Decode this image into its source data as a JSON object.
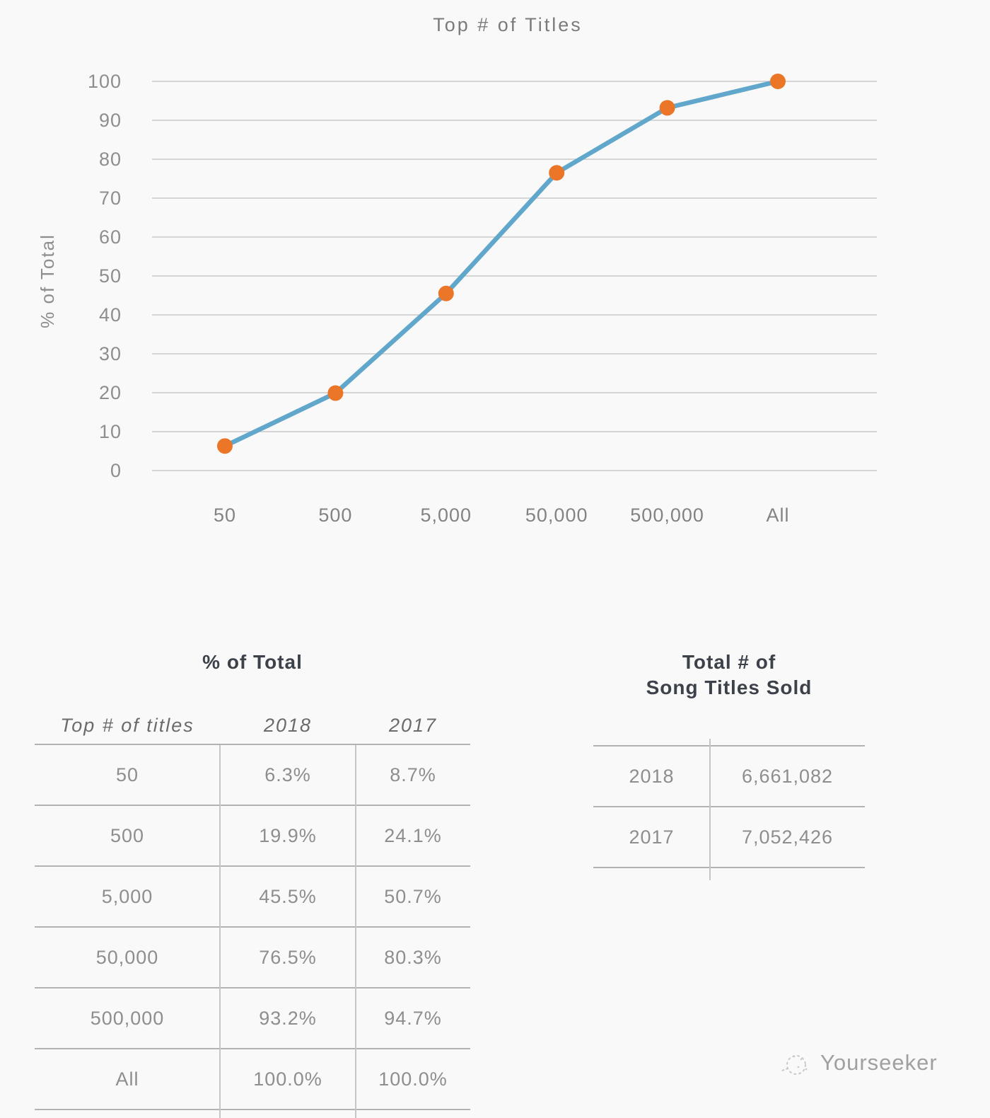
{
  "chart_data": {
    "type": "line",
    "title": "Top # of Titles",
    "ylabel": "% of Total",
    "xlabel": "",
    "categories": [
      "50",
      "500",
      "5,000",
      "50,000",
      "500,000",
      "All"
    ],
    "series": [
      {
        "name": "2018",
        "values": [
          6.3,
          19.9,
          45.5,
          76.5,
          93.2,
          100.0
        ]
      }
    ],
    "ylim": [
      0,
      100
    ],
    "yticks": [
      0,
      10,
      20,
      30,
      40,
      50,
      60,
      70,
      80,
      90,
      100
    ],
    "grid": true,
    "legend": "none",
    "colors": {
      "line": "#61A7CB",
      "marker": "#EC7628",
      "gridline": "#c9c9c9"
    }
  },
  "pct_table": {
    "title": "% of Total",
    "columns": [
      "Top # of titles",
      "2018",
      "2017"
    ],
    "rows": [
      [
        "50",
        "6.3%",
        "8.7%"
      ],
      [
        "500",
        "19.9%",
        "24.1%"
      ],
      [
        "5,000",
        "45.5%",
        "50.7%"
      ],
      [
        "50,000",
        "76.5%",
        "80.3%"
      ],
      [
        "500,000",
        "93.2%",
        "94.7%"
      ],
      [
        "All",
        "100.0%",
        "100.0%"
      ]
    ]
  },
  "totals_table": {
    "title_lines": [
      "Total # of",
      "Song Titles Sold"
    ],
    "rows": [
      [
        "2018",
        "6,661,082"
      ],
      [
        "2017",
        "7,052,426"
      ]
    ]
  },
  "watermark": {
    "label": "Yourseeker"
  }
}
